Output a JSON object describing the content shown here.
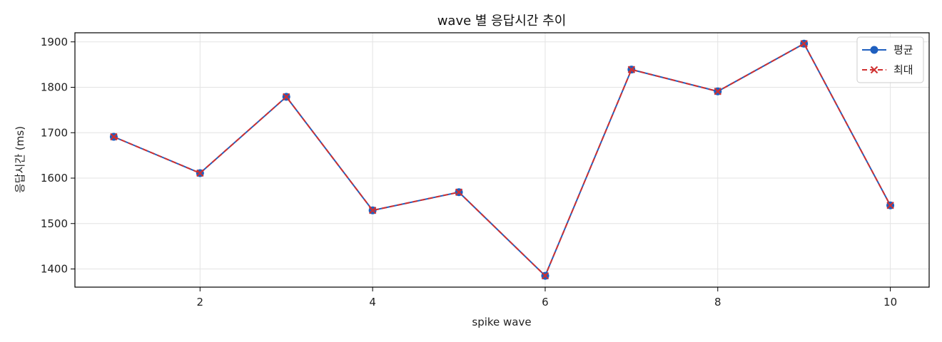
{
  "chart_data": {
    "type": "line",
    "title": "wave 별 응답시간 추이",
    "xlabel": "spike wave",
    "ylabel": "응답시간 (ms)",
    "x": [
      1,
      2,
      3,
      4,
      5,
      6,
      7,
      8,
      9,
      10
    ],
    "xlim": [
      0.55,
      10.45
    ],
    "ylim": [
      1360,
      1920
    ],
    "xticks": [
      2,
      4,
      6,
      8,
      10
    ],
    "yticks": [
      1400,
      1500,
      1600,
      1700,
      1800,
      1900
    ],
    "grid": true,
    "legend_position": "top-right",
    "series": [
      {
        "name": "평균",
        "values": [
          1691,
          1611,
          1779,
          1529,
          1569,
          1385,
          1839,
          1791,
          1896,
          1540
        ],
        "color": "#1f5fbf",
        "marker": "circle",
        "line_style": "solid"
      },
      {
        "name": "최대",
        "values": [
          1691,
          1611,
          1779,
          1529,
          1569,
          1385,
          1839,
          1791,
          1896,
          1540
        ],
        "color": "#d03030",
        "marker": "x",
        "line_style": "dashed"
      }
    ]
  }
}
